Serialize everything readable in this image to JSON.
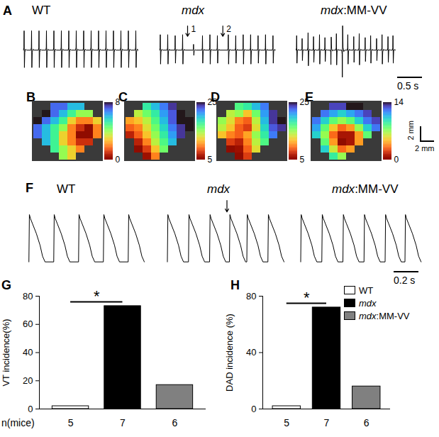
{
  "chart_data": [
    {
      "type": "line",
      "panel": "A",
      "tick_labels": false,
      "xlim": [
        0,
        2.5
      ],
      "ylim": [
        -3.5,
        2.5
      ],
      "template": {
        "x": [
          -0.012,
          -0.004,
          0,
          0.006,
          0.014,
          0.03,
          0.05
        ],
        "y": [
          0,
          0.15,
          1,
          -0.9,
          -0.1,
          0.05,
          0
        ]
      },
      "series": [
        {
          "name": "WT",
          "beats": [
            0.05,
            0.2,
            0.35,
            0.5,
            0.65,
            0.8,
            0.95,
            1.1,
            1.25,
            1.4,
            1.55,
            1.7,
            1.85,
            2.0,
            2.15,
            2.3
          ],
          "amplitudes": [
            2,
            2,
            2,
            2,
            2,
            2,
            2,
            2,
            2,
            2,
            2,
            2,
            2,
            2,
            2,
            2
          ]
        },
        {
          "name": "mdx",
          "beats": [
            0.05,
            0.2,
            0.35,
            0.5,
            0.72,
            0.9,
            1.05,
            1.2,
            1.42,
            1.57,
            1.72,
            1.87,
            2.02,
            2.17,
            2.32
          ],
          "amplitudes": [
            1.6,
            1.6,
            1.5,
            1.6,
            0.6,
            1.5,
            1.6,
            1.5,
            1.6,
            1.5,
            1.6,
            1.6,
            1.5,
            1.6,
            1.5
          ]
        },
        {
          "name": "mdx:MM-VV",
          "beats": [
            0.04,
            0.15,
            0.27,
            0.38,
            0.5,
            0.61,
            0.73,
            0.84,
            0.96,
            1.07,
            1.19,
            1.3,
            1.42,
            1.53,
            1.65,
            1.76,
            1.88,
            1.98
          ],
          "amplitudes": [
            1.5,
            1.2,
            1.8,
            1.4,
            1.6,
            1.3,
            -1.5,
            1.7,
            -2.8,
            1.6,
            1.4,
            1.7,
            1.3,
            1.5,
            1.2,
            1.6,
            1.4,
            1.5
          ]
        }
      ],
      "annotations": [
        {
          "series": "mdx",
          "x": 0.6,
          "text": "1"
        },
        {
          "series": "mdx",
          "x": 1.31,
          "text": "2"
        }
      ],
      "scale_bar": {
        "value": 0.5,
        "label": "0.5 s"
      }
    },
    {
      "type": "heatmap",
      "tick_labels": false,
      "maps": [
        {
          "panel": "B",
          "colorbar": {
            "range": [
              0,
              8
            ],
            "ticks": [
              0,
              8
            ]
          },
          "cells": [
            [
              null,
              null,
              7,
              7,
              6,
              6,
              null,
              null
            ],
            [
              null,
              8,
              7,
              6,
              5,
              4,
              4,
              null
            ],
            [
              8,
              7,
              6,
              5,
              3,
              2,
              2,
              3
            ],
            [
              7,
              6,
              5,
              4,
              2,
              1,
              0,
              2
            ],
            [
              7,
              6,
              5,
              3,
              2,
              0,
              0,
              2
            ],
            [
              null,
              6,
              5,
              3,
              2,
              1,
              1,
              null
            ],
            [
              null,
              null,
              5,
              4,
              3,
              2,
              null,
              null
            ],
            [
              null,
              null,
              null,
              4,
              3,
              null,
              null,
              null
            ]
          ]
        },
        {
          "panel": "C",
          "colorbar": {
            "range": [
              5,
              25
            ],
            "ticks": [
              5,
              25
            ]
          },
          "cells": [
            [
              null,
              null,
              18,
              20,
              22,
              24,
              null,
              null
            ],
            [
              null,
              14,
              16,
              18,
              21,
              23,
              25,
              null
            ],
            [
              11,
              12,
              14,
              17,
              20,
              23,
              25,
              25
            ],
            [
              9,
              10,
              13,
              16,
              19,
              22,
              24,
              25
            ],
            [
              7,
              9,
              12,
              15,
              18,
              21,
              24,
              null
            ],
            [
              null,
              7,
              10,
              14,
              17,
              20,
              null,
              null
            ],
            [
              null,
              5,
              8,
              12,
              16,
              null,
              null,
              null
            ],
            [
              null,
              null,
              6,
              10,
              null,
              null,
              null,
              null
            ]
          ]
        },
        {
          "panel": "D",
          "colorbar": {
            "range": [
              5,
              25
            ],
            "ticks": [
              5,
              25
            ]
          },
          "cells": [
            [
              null,
              null,
              17,
              18,
              20,
              22,
              null,
              null
            ],
            [
              null,
              14,
              15,
              12,
              16,
              21,
              24,
              null
            ],
            [
              15,
              13,
              10,
              9,
              14,
              20,
              24,
              25
            ],
            [
              14,
              12,
              9,
              8,
              13,
              19,
              23,
              24
            ],
            [
              12,
              10,
              9,
              11,
              15,
              18,
              22,
              null
            ],
            [
              null,
              8,
              7,
              10,
              14,
              17,
              null,
              null
            ],
            [
              null,
              5,
              6,
              9,
              13,
              null,
              null,
              null
            ],
            [
              null,
              null,
              5,
              8,
              null,
              null,
              null,
              null
            ]
          ]
        },
        {
          "panel": "E",
          "colorbar": {
            "range": [
              0,
              14
            ],
            "ticks": [
              0,
              14
            ]
          },
          "cells": [
            [
              null,
              null,
              13,
              13,
              14,
              14,
              null,
              null
            ],
            [
              null,
              12,
              11,
              10,
              11,
              12,
              13,
              null
            ],
            [
              12,
              10,
              8,
              7,
              8,
              10,
              12,
              13
            ],
            [
              11,
              8,
              5,
              3,
              4,
              7,
              10,
              12
            ],
            [
              10,
              7,
              3,
              1,
              1,
              4,
              8,
              null
            ],
            [
              null,
              8,
              4,
              0,
              1,
              4,
              null,
              null
            ],
            [
              null,
              10,
              6,
              3,
              4,
              null,
              null,
              null
            ],
            [
              null,
              null,
              9,
              7,
              null,
              null,
              null,
              null
            ]
          ]
        }
      ],
      "scale_bar": {
        "label": "2 mm"
      }
    },
    {
      "type": "line",
      "panel": "F",
      "tick_labels": false,
      "xlim": [
        0,
        1.0
      ],
      "ylim": [
        -0.05,
        1.3
      ],
      "template": {
        "x": [
          0,
          0.004,
          0.012,
          0.03,
          0.06,
          0.09,
          0.11,
          0.13
        ],
        "y": [
          0,
          1,
          0.92,
          0.8,
          0.6,
          0.35,
          0.12,
          0
        ]
      },
      "series": [
        {
          "name": "WT",
          "beats": [
            0.03,
            0.23,
            0.43,
            0.63,
            0.83
          ],
          "amplitudes": [
            1,
            1,
            1,
            1,
            1
          ]
        },
        {
          "name": "mdx",
          "beats": [
            0.02,
            0.19,
            0.36,
            0.52,
            0.66,
            0.83
          ],
          "amplitudes": [
            1,
            1,
            1,
            1,
            1,
            1
          ]
        },
        {
          "name": "mdx:MM-VV",
          "beats": [
            0.02,
            0.19,
            0.36,
            0.53,
            0.7,
            0.86
          ],
          "amplitudes": [
            1,
            1,
            1,
            1,
            1,
            1
          ]
        }
      ],
      "annotations": [
        {
          "series": "mdx",
          "x": 0.5
        }
      ],
      "scale_bar": {
        "value": 0.2,
        "label": "0.2 s"
      }
    },
    {
      "type": "bar",
      "panel": "G",
      "categories": [
        "WT",
        "mdx",
        "mdx:MM-VV"
      ],
      "values": [
        2,
        73,
        17
      ],
      "colors": [
        "#ffffff",
        "#000000",
        "#808080"
      ],
      "ylabel": "VT incidence(%)",
      "ylim": [
        0,
        80
      ],
      "yticks": [
        0,
        20,
        40,
        60,
        80
      ],
      "tick_labels": "y",
      "n_label": "n(mice)",
      "n": [
        5,
        7,
        6
      ],
      "annotations": [
        {
          "text": "*",
          "from": 0,
          "to": 1
        }
      ]
    },
    {
      "type": "bar",
      "panel": "H",
      "categories": [
        "WT",
        "mdx",
        "mdx:MM-VV"
      ],
      "values": [
        2,
        72,
        16
      ],
      "colors": [
        "#ffffff",
        "#000000",
        "#808080"
      ],
      "ylabel": "DAD incidence (%)",
      "ylim": [
        0,
        80
      ],
      "yticks": [
        0,
        40,
        80
      ],
      "tick_labels": "y",
      "n": [
        5,
        7,
        6
      ],
      "legend": "right",
      "annotations": [
        {
          "text": "*",
          "from": 0,
          "to": 1
        }
      ]
    }
  ]
}
